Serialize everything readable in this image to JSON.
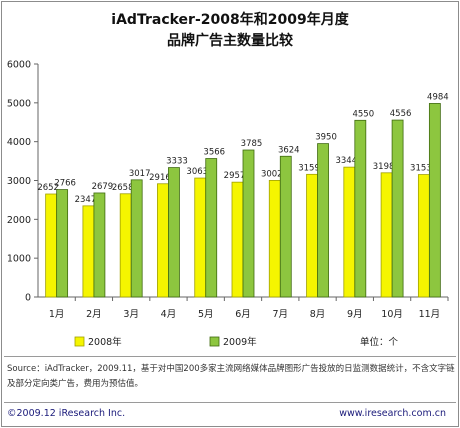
{
  "header": {
    "title_line1": "iAdTracker-2008年和2009年月度",
    "title_line2": "品牌广告主数量比较"
  },
  "chart_data": {
    "type": "bar",
    "categories": [
      "1月",
      "2月",
      "3月",
      "4月",
      "5月",
      "6月",
      "7月",
      "8月",
      "9月",
      "10月",
      "11月"
    ],
    "series": [
      {
        "name": "2008年",
        "color": "#f5f500",
        "edge": "#a0a000",
        "values": [
          2652,
          2347,
          2658,
          2916,
          3063,
          2957,
          3002,
          3159,
          3344,
          3198,
          3153
        ]
      },
      {
        "name": "2009年",
        "color": "#8dc63f",
        "edge": "#3f6a10",
        "values": [
          2766,
          2679,
          3017,
          3333,
          3566,
          3785,
          3624,
          3950,
          4550,
          4556,
          4984
        ]
      }
    ],
    "ylim": [
      0,
      6000
    ],
    "yticks": [
      "0",
      "1000",
      "2000",
      "3000",
      "4000",
      "5000",
      "6000"
    ],
    "unit_label": "单位：个",
    "grid": false,
    "legend_position": "bottom"
  },
  "source": {
    "text": "Source：iAdTracker，2009.11，基于对中国200多家主流网络媒体品牌图形广告投放的日监测数据统计，不含文字链及部分定向类广告，费用为预估值。"
  },
  "footer": {
    "copyright": "©2009.12 iResearch Inc.",
    "url": "www.iresearch.com.cn"
  }
}
